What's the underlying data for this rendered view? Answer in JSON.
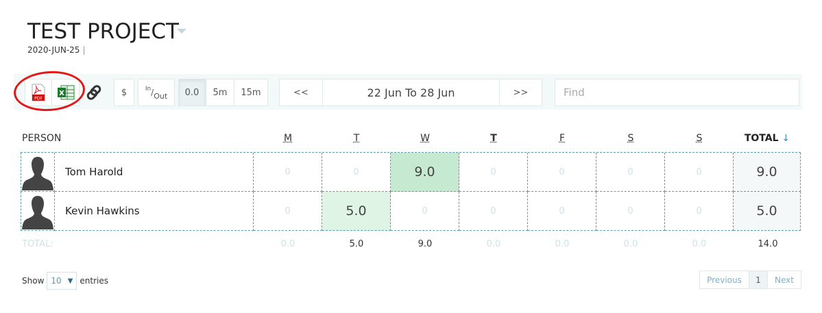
{
  "header": {
    "title": "TEST PROJECT",
    "date": "2020-JUN-25",
    "separator": "|"
  },
  "toolbar": {
    "pdf_icon": "pdf-icon",
    "pdf_label": "PDF",
    "excel_icon": "excel-icon",
    "link_icon": "link-icon",
    "currency": "$",
    "inout_in": "In",
    "inout_out": "Out",
    "rounding": [
      {
        "label": "0.0",
        "active": true
      },
      {
        "label": "5m",
        "active": false
      },
      {
        "label": "15m",
        "active": false
      }
    ],
    "prev": "<<",
    "range": "22 Jun To 28 Jun",
    "next": ">>",
    "find_placeholder": "Find"
  },
  "table": {
    "person_header": "PERSON",
    "days": [
      "M",
      "T",
      "W",
      "T",
      "F",
      "S",
      "S"
    ],
    "total_header": "TOTAL",
    "sort_icon": "arrow-down-icon",
    "rows": [
      {
        "name": "Tom Harold",
        "values": [
          "0",
          "0",
          "9.0",
          "0",
          "0",
          "0",
          "0"
        ],
        "total": "9.0"
      },
      {
        "name": "Kevin Hawkins",
        "values": [
          "0",
          "5.0",
          "0",
          "0",
          "0",
          "0",
          "0"
        ],
        "total": "5.0"
      }
    ],
    "totals_label": "TOTAL:",
    "totals": [
      "0.0",
      "5.0",
      "9.0",
      "0.0",
      "0.0",
      "0.0",
      "0.0"
    ],
    "grand_total": "14.0"
  },
  "footer": {
    "show": "Show",
    "page_size": "10",
    "entries": "entries",
    "previous": "Previous",
    "page": "1",
    "next": "Next"
  },
  "colors": {
    "highlight_strong": "#c6ead1",
    "highlight_light": "#e0f4e6",
    "border": "#5a9bb0",
    "annotation": "#e01818"
  }
}
